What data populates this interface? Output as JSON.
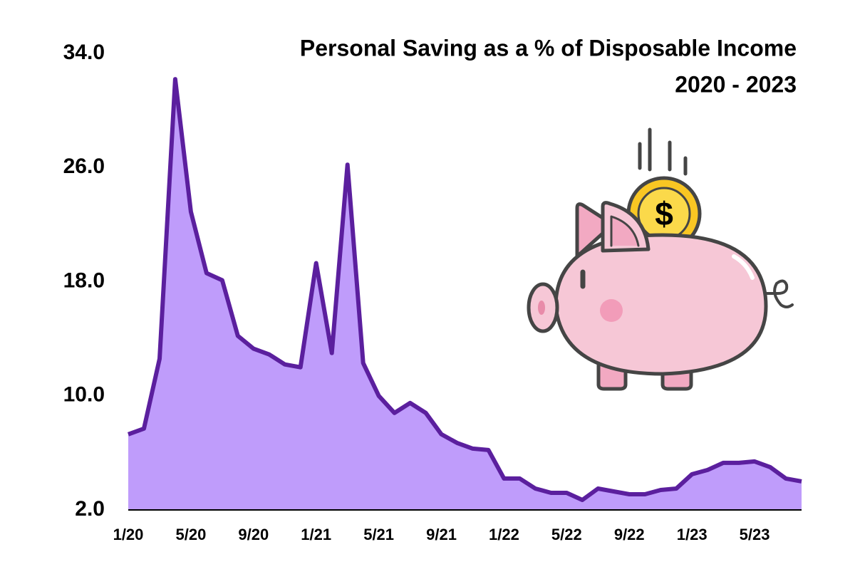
{
  "chart_data": {
    "type": "area",
    "title": "Personal Saving as a % of Disposable Income",
    "subtitle": "2020 - 2023",
    "categories": [
      "1/20",
      null,
      null,
      null,
      "5/20",
      null,
      null,
      null,
      "9/20",
      null,
      null,
      null,
      "1/21",
      null,
      null,
      null,
      "5/21",
      null,
      null,
      null,
      "9/21",
      null,
      null,
      null,
      "1/22",
      null,
      null,
      null,
      "5/22",
      null,
      null,
      null,
      "9/22",
      null,
      null,
      null,
      "1/23",
      null,
      null,
      null,
      "5/23",
      null,
      null,
      null
    ],
    "values": [
      7.3,
      7.7,
      12.6,
      32.2,
      22.9,
      18.6,
      18.1,
      14.2,
      13.3,
      12.9,
      12.2,
      12.0,
      19.3,
      13.0,
      26.2,
      12.3,
      10.0,
      8.8,
      9.5,
      8.8,
      7.3,
      6.7,
      6.3,
      6.2,
      4.2,
      4.2,
      3.5,
      3.2,
      3.2,
      2.7,
      3.5,
      3.3,
      3.1,
      3.1,
      3.4,
      3.5,
      4.5,
      4.8,
      5.3,
      5.3,
      5.4,
      5.0,
      4.2,
      4.0
    ],
    "color": "#5b1f9e",
    "fill": "#bf9cfb",
    "ylim": [
      2,
      34
    ],
    "yticks": [
      {
        "value": 2,
        "label": "2.0"
      },
      {
        "value": 10,
        "label": "10.0"
      },
      {
        "value": 18,
        "label": "18.0"
      },
      {
        "value": 26,
        "label": "26.0"
      },
      {
        "value": 34,
        "label": "34.0"
      }
    ],
    "grid": false
  }
}
